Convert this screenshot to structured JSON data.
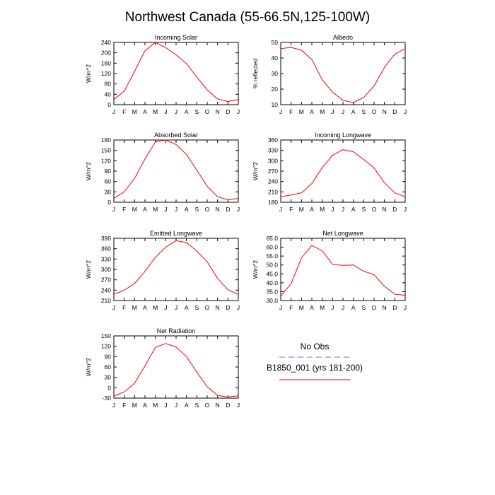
{
  "title": "Northwest Canada (55-66.5N,125-100W)",
  "months": [
    "J",
    "F",
    "M",
    "A",
    "M",
    "J",
    "J",
    "A",
    "S",
    "O",
    "N",
    "D",
    "J"
  ],
  "legend": {
    "obs_label": "No Obs",
    "model_label": "B1850_001 (yrs 181-200)",
    "obs_color": "#6b6bff",
    "model_color": "#ff0000"
  },
  "chart_data": [
    {
      "type": "line",
      "title": "Incoming Solar",
      "ylabel": "W/m^2",
      "ylim": [
        0,
        240
      ],
      "yticks": [
        "0",
        "40",
        "80",
        "120",
        "160",
        "200",
        "240"
      ],
      "series": [
        {
          "name": "B1850_001 (yrs 181-200)",
          "values": [
            20,
            52,
            128,
            208,
            240,
            220,
            192,
            158,
            107,
            57,
            22,
            12,
            20
          ]
        }
      ]
    },
    {
      "type": "line",
      "title": "Albedo",
      "ylabel": "% reflected",
      "ylim": [
        10,
        50
      ],
      "yticks": [
        "10",
        "20",
        "30",
        "40",
        "50"
      ],
      "series": [
        {
          "name": "B1850_001 (yrs 181-200)",
          "values": [
            46,
            46.8,
            45,
            39,
            26,
            18,
            12.8,
            11.3,
            14.7,
            22,
            34,
            42.5,
            46
          ]
        }
      ]
    },
    {
      "type": "line",
      "title": "Absorbed Solar",
      "ylabel": "W/m^2",
      "ylim": [
        0,
        180
      ],
      "yticks": [
        "0",
        "30",
        "60",
        "90",
        "120",
        "150",
        "180"
      ],
      "series": [
        {
          "name": "B1850_001 (yrs 181-200)",
          "values": [
            11,
            30,
            69,
            125,
            174,
            180,
            167,
            138,
            93,
            46,
            16,
            7,
            11
          ]
        }
      ]
    },
    {
      "type": "line",
      "title": "Incoming Longwave",
      "ylabel": "W/m^2",
      "ylim": [
        180,
        360
      ],
      "yticks": [
        "180",
        "210",
        "240",
        "270",
        "300",
        "330",
        "360"
      ],
      "series": [
        {
          "name": "B1850_001 (yrs 181-200)",
          "values": [
            196,
            201,
            207,
            234,
            280,
            316,
            332,
            326,
            304,
            279,
            236,
            207,
            196
          ]
        }
      ]
    },
    {
      "type": "line",
      "title": "Emitted Longwave",
      "ylabel": "W/m^2",
      "ylim": [
        210,
        390
      ],
      "yticks": [
        "210",
        "240",
        "270",
        "300",
        "330",
        "360",
        "390"
      ],
      "series": [
        {
          "name": "B1850_001 (yrs 181-200)",
          "values": [
            228,
            240,
            259,
            294,
            335,
            364,
            383,
            378,
            353,
            322,
            274,
            241,
            228
          ]
        }
      ]
    },
    {
      "type": "line",
      "title": "Net Longwave",
      "ylabel": "W/m^2",
      "ylim": [
        30,
        65
      ],
      "yticks": [
        "30.0",
        "35.0",
        "40.0",
        "45.0",
        "50.0",
        "55.0",
        "60.0",
        "65.0"
      ],
      "series": [
        {
          "name": "B1850_001 (yrs 181-200)",
          "values": [
            32.5,
            39.5,
            54,
            61,
            58,
            50.3,
            49.8,
            50,
            46.5,
            44.5,
            38,
            33.5,
            33
          ]
        }
      ]
    },
    {
      "type": "line",
      "title": "Net Radiation",
      "ylabel": "W/m^2",
      "ylim": [
        -30,
        150
      ],
      "yticks": [
        "-30",
        "0",
        "30",
        "60",
        "90",
        "120",
        "150"
      ],
      "series": [
        {
          "name": "B1850_001 (yrs 181-200)",
          "values": [
            -24,
            -12,
            13,
            63,
            117,
            128,
            118,
            90,
            45,
            3,
            -22,
            -27,
            -23
          ]
        }
      ]
    }
  ]
}
